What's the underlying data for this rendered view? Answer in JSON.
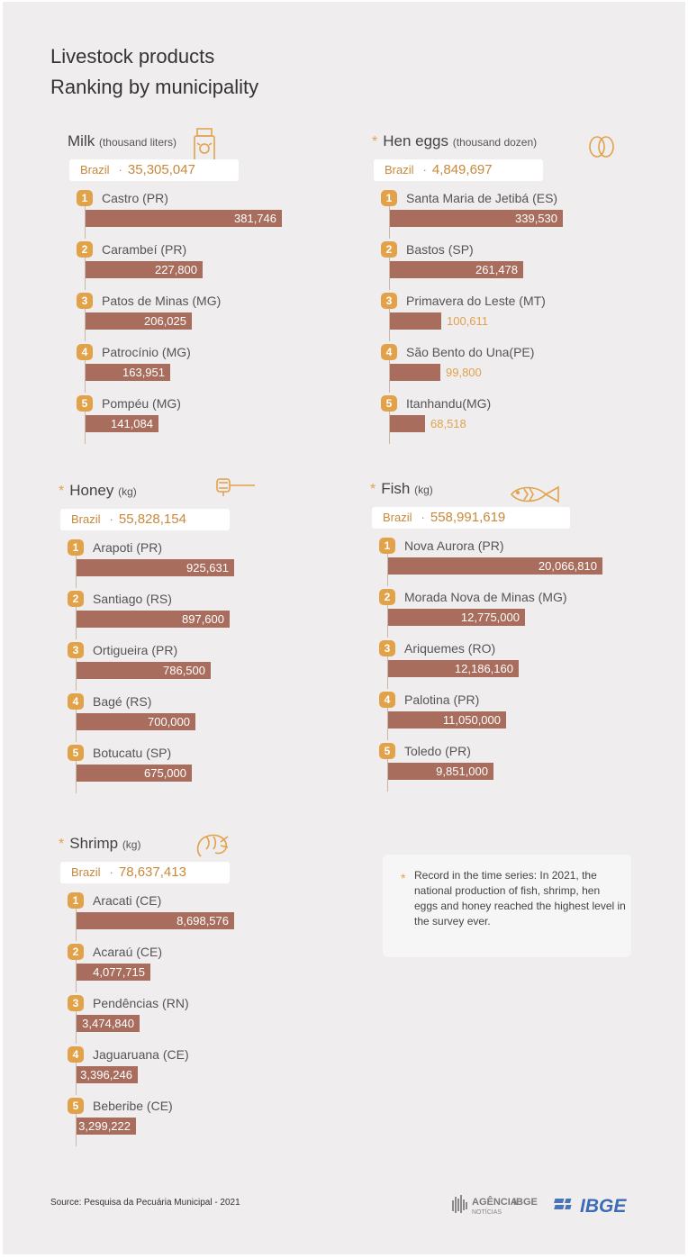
{
  "title_line1": "Livestock products",
  "title_line2": "Ranking by municipality",
  "colors": {
    "bar": "#a96d5e",
    "accent": "#e2a24a",
    "total_text": "#c8893a",
    "background": "#efeded"
  },
  "chart_data": [
    {
      "type": "bar",
      "category": "Milk",
      "unit": "(thousand liters)",
      "record_marker": "",
      "icon": "milk-carton-icon",
      "total_label": "Brazil",
      "total": "35,305,047",
      "categories": [
        "Castro (PR)",
        "Carambeí (PR)",
        "Patos de Minas (MG)",
        "Patrocínio (MG)",
        "Pompéu (MG)"
      ],
      "values": [
        381746,
        227800,
        206025,
        163951,
        141084
      ],
      "labels": [
        "381,746",
        "227,800",
        "206,025",
        "163,951",
        "141,084"
      ],
      "ranks": [
        "1",
        "2",
        "3",
        "4",
        "5"
      ]
    },
    {
      "type": "bar",
      "category": "Hen eggs",
      "unit": "(thousand dozen)",
      "record_marker": "*",
      "icon": "eggs-icon",
      "total_label": "Brazil",
      "total": "4,849,697",
      "categories": [
        "Santa Maria de Jetibá  (ES)",
        "Bastos  (SP)",
        "Primavera do Leste (MT)",
        "São Bento do Una(PE)",
        "Itanhandu(MG)"
      ],
      "values": [
        339530,
        261478,
        100611,
        99800,
        68518
      ],
      "labels": [
        "339,530",
        "261,478",
        "100,611",
        "99,800",
        "68,518"
      ],
      "ranks": [
        "1",
        "2",
        "3",
        "4",
        "5"
      ]
    },
    {
      "type": "bar",
      "category": "Honey",
      "unit": "(kg)",
      "record_marker": "*",
      "icon": "honey-dipper-icon",
      "total_label": "Brazil",
      "total": "55,828,154",
      "categories": [
        "Arapoti (PR)",
        "Santiago (RS)",
        "Ortigueira (PR)",
        "Bagé (RS)",
        "Botucatu (SP)"
      ],
      "values": [
        925631,
        897600,
        786500,
        700000,
        675000
      ],
      "labels": [
        "925,631",
        "897,600",
        "786,500",
        "700,000",
        "675,000"
      ],
      "ranks": [
        "1",
        "2",
        "3",
        "4",
        "5"
      ]
    },
    {
      "type": "bar",
      "category": "Fish",
      "unit": "(kg)",
      "record_marker": "*",
      "icon": "fish-icon",
      "total_label": "Brazil",
      "total": "558,991,619",
      "categories": [
        "Nova Aurora (PR)",
        "Morada Nova de Minas (MG)",
        "Ariquemes (RO)",
        "Palotina (PR)",
        "Toledo (PR)"
      ],
      "values": [
        20066810,
        12775000,
        12186160,
        11050000,
        9851000
      ],
      "labels": [
        "20,066,810",
        "12,775,000",
        "12,186,160",
        "11,050,000",
        "9,851,000"
      ],
      "ranks": [
        "1",
        "2",
        "3",
        "4",
        "5"
      ]
    },
    {
      "type": "bar",
      "category": "Shrimp",
      "unit": "(kg)",
      "record_marker": "*",
      "icon": "shrimp-icon",
      "total_label": "Brazil",
      "total": "78,637,413",
      "categories": [
        "Aracati   (CE)",
        "Acaraú  (CE)",
        "Pendências (RN)",
        "Jaguaruana (CE)",
        "Beberibe (CE)"
      ],
      "values": [
        8698576,
        4077715,
        3474840,
        3396246,
        3299222
      ],
      "labels": [
        "8,698,576",
        "4,077,715",
        "3,474,840",
        "3,396,246",
        "3,299,222"
      ],
      "ranks": [
        "1",
        "2",
        "3",
        "4",
        "5"
      ]
    }
  ],
  "note": {
    "marker": "*",
    "text": "Record in the time series: In 2021, the national production of fish, shrimp, hen eggs and honey reached the highest level in the survey ever."
  },
  "source": "Source: Pesquisa da Pecuária Municipal - 2021",
  "logo_agencia": {
    "line1": "AGÊNCIA",
    "line2": "IBGE",
    "line3": "NOTÍCIAS"
  },
  "logo_ibge": "IBGE"
}
